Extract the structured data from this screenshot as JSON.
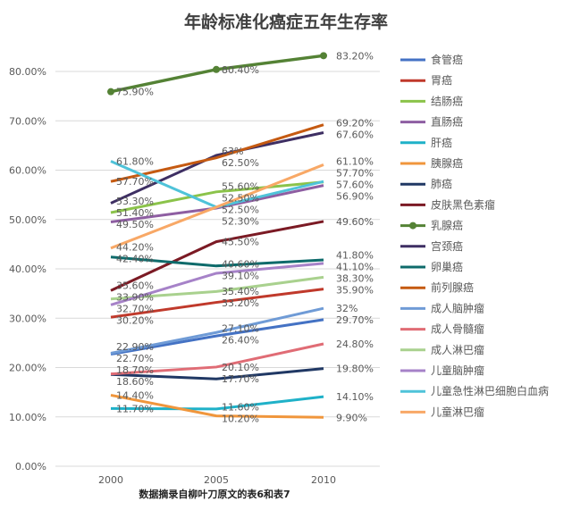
{
  "chart_data": {
    "type": "line",
    "title": "年龄标准化癌症五年生存率",
    "footnote": "数据摘录自柳叶刀原文的表6和表7",
    "x": [
      "2000",
      "2005",
      "2010"
    ],
    "ylim": [
      0,
      80
    ],
    "yticks": [
      "0.00%",
      "10.00%",
      "20.00%",
      "30.00%",
      "40.00%",
      "50.00%",
      "60.00%",
      "70.00%",
      "80.00%"
    ],
    "grid": true,
    "legend_position": "right",
    "series": [
      {
        "name": "食管癌",
        "color": "#4472c4",
        "values": [
          22.7,
          26.4,
          29.7
        ],
        "labels": [
          "22.70%",
          "26.40%",
          "29.70%"
        ]
      },
      {
        "name": "胃癌",
        "color": "#c0392b",
        "values": [
          30.2,
          33.2,
          35.9
        ],
        "labels": [
          "30.20%",
          "33.20%",
          "35.90%"
        ]
      },
      {
        "name": "结肠癌",
        "color": "#8bc34a",
        "values": [
          51.4,
          55.6,
          57.6
        ],
        "labels": [
          "51.40%",
          "55.60%",
          "57.60%"
        ]
      },
      {
        "name": "直肠癌",
        "color": "#8e5ea2",
        "values": [
          49.5,
          52.3,
          56.9
        ],
        "labels": [
          "49.50%",
          "52.30%",
          "56.90%"
        ]
      },
      {
        "name": "肝癌",
        "color": "#1fb1c8",
        "values": [
          11.7,
          11.6,
          14.1
        ],
        "labels": [
          "11.70%",
          "11.60%",
          "14.10%"
        ]
      },
      {
        "name": "胰腺癌",
        "color": "#f0963c",
        "values": [
          14.4,
          10.2,
          9.9
        ],
        "labels": [
          "14.40%",
          "10.20%",
          "9.90%"
        ]
      },
      {
        "name": "肺癌",
        "color": "#203864",
        "values": [
          18.6,
          17.7,
          19.8
        ],
        "labels": [
          "18.60%",
          "17.70%",
          "19.80%"
        ]
      },
      {
        "name": "皮肤黑色素瘤",
        "color": "#7b1a24",
        "values": [
          35.6,
          45.5,
          49.6
        ],
        "labels": [
          "35.60%",
          "45.50%",
          "49.60%"
        ]
      },
      {
        "name": "乳腺癌",
        "color": "#548235",
        "values": [
          75.9,
          80.4,
          83.2
        ],
        "labels": [
          "75.90%",
          "80.40%",
          "83.20%"
        ],
        "markers": true
      },
      {
        "name": "宫颈癌",
        "color": "#3e2f63",
        "values": [
          53.3,
          63.0,
          67.6
        ],
        "labels": [
          "53.30%",
          "63%",
          "67.60%"
        ]
      },
      {
        "name": "卵巢癌",
        "color": "#0e6b6b",
        "values": [
          42.4,
          40.6,
          41.8
        ],
        "labels": [
          "42.40%",
          "40.60%",
          "41.80%"
        ]
      },
      {
        "name": "前列腺癌",
        "color": "#c55a11",
        "values": [
          57.7,
          62.5,
          69.2
        ],
        "labels": [
          "57.70%",
          "62.50%",
          "69.20%"
        ]
      },
      {
        "name": "成人脑肿瘤",
        "color": "#6f9bd6",
        "values": [
          22.9,
          27.1,
          32.0
        ],
        "labels": [
          "22.90%",
          "27.10%",
          "32%"
        ]
      },
      {
        "name": "成人骨髓瘤",
        "color": "#e06c75",
        "values": [
          18.7,
          20.1,
          24.8
        ],
        "labels": [
          "18.70%",
          "20.10%",
          "24.80%"
        ]
      },
      {
        "name": "成人淋巴瘤",
        "color": "#a9d18e",
        "values": [
          33.9,
          35.4,
          38.3
        ],
        "labels": [
          "33.90%",
          "35.40%",
          "38.30%"
        ]
      },
      {
        "name": "儿童脑肿瘤",
        "color": "#a682c8",
        "values": [
          32.7,
          39.1,
          41.1
        ],
        "labels": [
          "32.70%",
          "39.10%",
          "41.10%"
        ]
      },
      {
        "name": "儿童急性淋巴细胞白血病",
        "color": "#4fc3d9",
        "values": [
          61.8,
          52.5,
          57.7
        ],
        "labels": [
          "61.80%",
          "52.50%",
          "57.70%"
        ]
      },
      {
        "name": "儿童淋巴瘤",
        "color": "#f8a866",
        "values": [
          44.2,
          52.5,
          61.1
        ],
        "labels": [
          "44.20%",
          "52.50%",
          "61.10%"
        ]
      }
    ]
  }
}
